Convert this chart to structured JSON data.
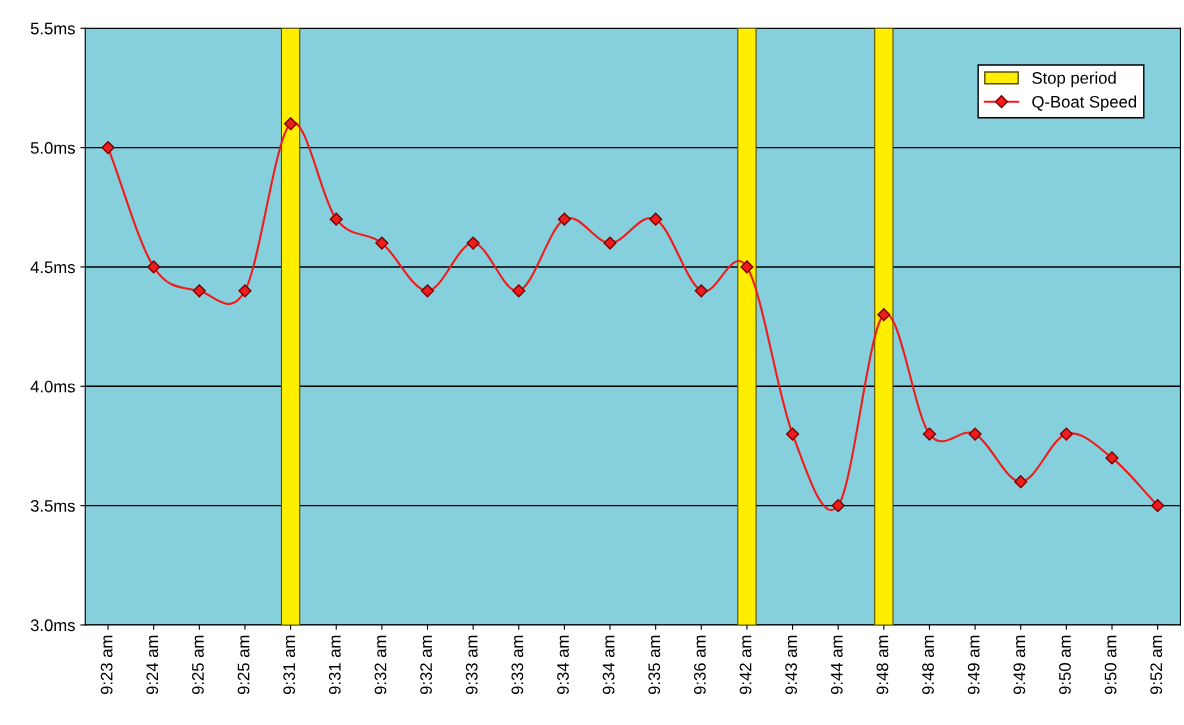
{
  "chart_data": {
    "type": "line",
    "categories": [
      "9:23 am",
      "9:24 am",
      "9:25 am",
      "9:25 am",
      "9:31 am",
      "9:31 am",
      "9:32 am",
      "9:32 am",
      "9:33 am",
      "9:33 am",
      "9:34 am",
      "9:34 am",
      "9:35 am",
      "9:36 am",
      "9:42 am",
      "9:43 am",
      "9:44 am",
      "9:48 am",
      "9:48 am",
      "9:49 am",
      "9:49 am",
      "9:50 am",
      "9:50 am",
      "9:52 am"
    ],
    "series": [
      {
        "name": "Stop period",
        "type": "bar",
        "color": "#ffee00",
        "values": [
          null,
          null,
          null,
          null,
          5.5,
          null,
          null,
          null,
          null,
          null,
          null,
          null,
          null,
          null,
          5.5,
          null,
          null,
          5.5,
          null,
          null,
          null,
          null,
          null,
          null
        ]
      },
      {
        "name": "Q-Boat Speed",
        "color": "#ee1c1c",
        "values": [
          5.0,
          4.5,
          4.4,
          4.4,
          5.1,
          4.7,
          4.6,
          4.4,
          4.6,
          4.4,
          4.7,
          4.6,
          4.7,
          4.4,
          4.5,
          3.8,
          3.5,
          4.3,
          3.8,
          3.8,
          3.6,
          3.8,
          3.7,
          3.5
        ]
      }
    ],
    "ylim": [
      3.0,
      5.5
    ],
    "yticks": [
      {
        "value": 3.0,
        "label": "3.0ms"
      },
      {
        "value": 3.5,
        "label": "3.5ms"
      },
      {
        "value": 4.0,
        "label": "4.0ms"
      },
      {
        "value": 4.5,
        "label": "4.5ms"
      },
      {
        "value": 5.0,
        "label": "5.0ms"
      },
      {
        "value": 5.5,
        "label": "5.5ms"
      }
    ],
    "grid": "y",
    "legend": "top right",
    "marker": "diamond",
    "line_style": "solid"
  }
}
